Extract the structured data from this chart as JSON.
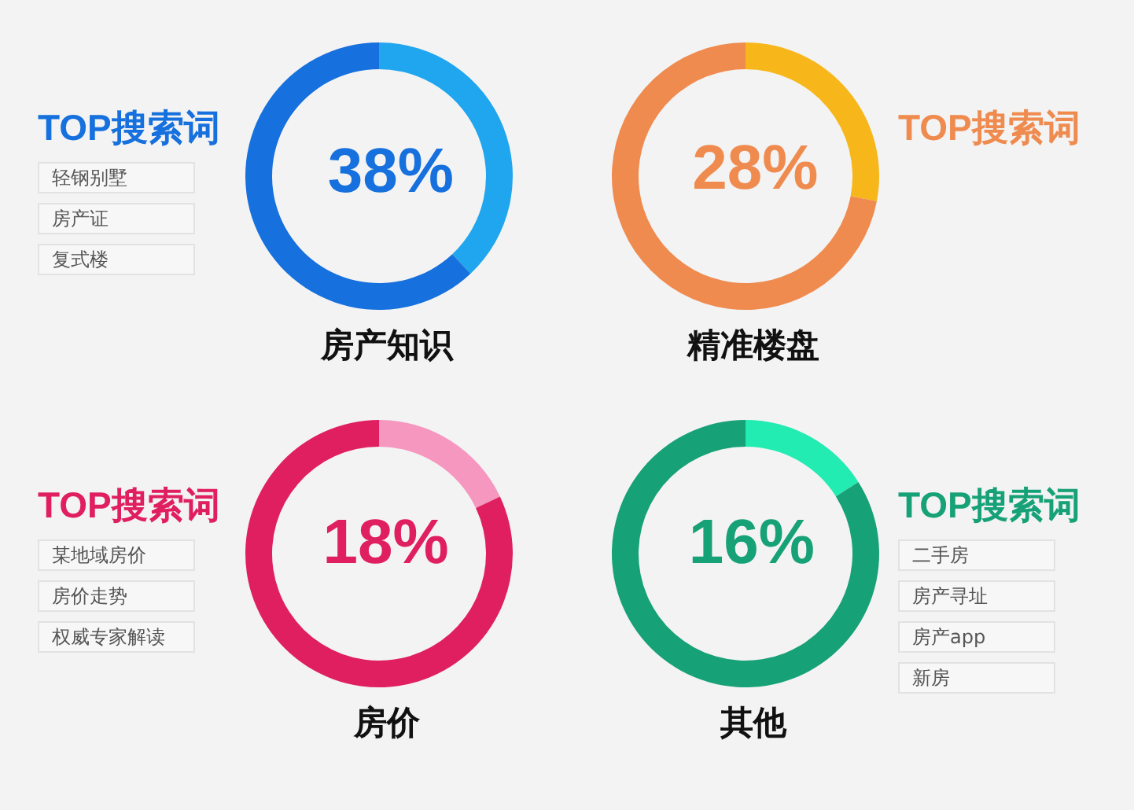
{
  "chart_data": [
    {
      "type": "donut",
      "title": "房产知识",
      "categories": [
        null,
        null
      ],
      "values": [
        38,
        62
      ],
      "colors": [
        "#1fa6ee",
        "#1670dd"
      ],
      "value_labels": [
        "38%",
        null
      ],
      "annotations": [
        "TOP搜索词",
        "轻钢别墅",
        "房产证",
        "复式楼"
      ]
    },
    {
      "type": "donut",
      "title": "精准楼盘",
      "categories": [
        null,
        null
      ],
      "values": [
        28,
        72
      ],
      "colors": [
        "#f7b71b",
        "#ef8b4f"
      ],
      "value_labels": [
        "28%",
        null
      ],
      "annotations": [
        "TOP搜索词"
      ]
    },
    {
      "type": "donut",
      "title": "房价",
      "categories": [
        null,
        null
      ],
      "values": [
        18,
        82
      ],
      "colors": [
        "#f597bf",
        "#e01f61"
      ],
      "value_labels": [
        "18%",
        null
      ],
      "annotations": [
        "TOP搜索词",
        "某地域房价",
        "房价走势",
        "权威专家解读"
      ]
    },
    {
      "type": "donut",
      "title": "其他",
      "categories": [
        null,
        null
      ],
      "values": [
        16,
        84
      ],
      "colors": [
        "#22ecb2",
        "#17a176"
      ],
      "value_labels": [
        "16%",
        null
      ],
      "annotations": [
        "TOP搜索词",
        "二手房",
        "房产寻址",
        "房产app",
        "新房"
      ]
    }
  ]
}
